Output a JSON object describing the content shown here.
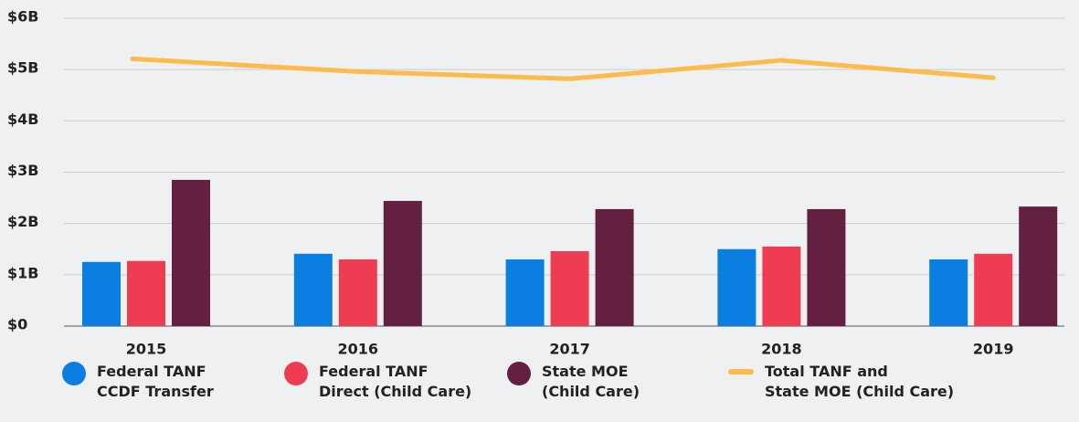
{
  "chart_data": {
    "type": "bar_line",
    "categories": [
      "2015",
      "2016",
      "2017",
      "2018",
      "2019"
    ],
    "series": [
      {
        "name": "Federal TANF\nCCDF Transfer",
        "color": "#0b7fe1",
        "kind": "bar",
        "values": [
          1.25,
          1.41,
          1.3,
          1.5,
          1.3
        ]
      },
      {
        "name": "Federal TANF\nDirect (Child Care)",
        "color": "#ee3d52",
        "kind": "bar",
        "values": [
          1.27,
          1.3,
          1.46,
          1.55,
          1.41
        ]
      },
      {
        "name": "State MOE\n(Child Care)",
        "color": "#632041",
        "kind": "bar",
        "values": [
          2.85,
          2.44,
          2.28,
          2.28,
          2.33
        ]
      },
      {
        "name": "Total TANF and\nState MOE (Child Care)",
        "color": "#fdbb4b",
        "kind": "line",
        "values": [
          5.21,
          4.96,
          4.82,
          5.18,
          4.84
        ]
      }
    ],
    "ylim": [
      0,
      6
    ],
    "yticks": [
      {
        "value": 0,
        "label": "$0"
      },
      {
        "value": 1,
        "label": "$1B"
      },
      {
        "value": 2,
        "label": "$2B"
      },
      {
        "value": 3,
        "label": "$3B"
      },
      {
        "value": 4,
        "label": "$4B"
      },
      {
        "value": 5,
        "label": "$5B"
      },
      {
        "value": 6,
        "label": "$6B"
      }
    ],
    "grid": true
  }
}
